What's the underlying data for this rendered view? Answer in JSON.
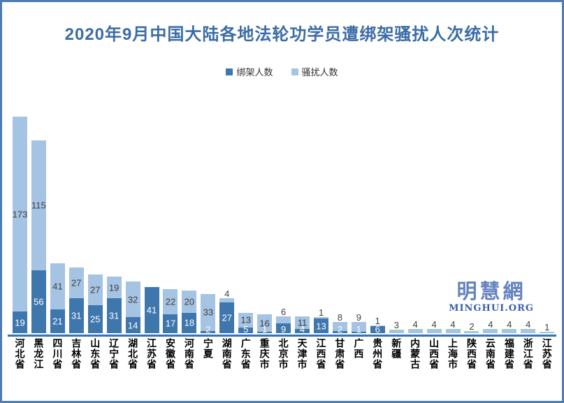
{
  "title": "2020年9月中国大陆各地法轮功学员遭绑架骚扰人次统计",
  "legend": [
    {
      "label": "绑架人数",
      "color": "#3e76ae"
    },
    {
      "label": "骚扰人数",
      "color": "#a5c3e2"
    }
  ],
  "watermark": {
    "cn": "明慧網",
    "en": "MINGHUI.ORG"
  },
  "colors": {
    "title": "#3b6ca6",
    "kidnap_bar": "#3e76ae",
    "harass_bar": "#a5c3e2",
    "axis_line": "#2e74b8",
    "border": "#4e7bb0",
    "label_dark_text": "#3f3f3f",
    "label_white_text": "#ffffff"
  },
  "chart_data": {
    "type": "bar",
    "stacked": true,
    "grid": false,
    "legend_position": "top",
    "title": "2020年9月中国大陆各地法轮功学员遭绑架骚扰人次统计",
    "xlabel": "",
    "ylabel": "",
    "ylim": [
      0,
      192
    ],
    "categories": [
      "河北省",
      "黑龙江",
      "四川省",
      "吉林省",
      "山东省",
      "辽宁省",
      "湖北省",
      "江苏省",
      "安徽省",
      "河南省",
      "宁夏",
      "湖南省",
      "广东省",
      "重庆市",
      "北京市",
      "天津市",
      "江西省",
      "甘肃省",
      "广西",
      "贵州省",
      "新疆",
      "内蒙古",
      "山西省",
      "上海市",
      "陕西省",
      "云南省",
      "福建省",
      "浙江省",
      "江苏省"
    ],
    "series": [
      {
        "name": "绑架人数",
        "color": "#3e76ae",
        "values": [
          19,
          56,
          21,
          31,
          25,
          31,
          14,
          41,
          17,
          18,
          2,
          27,
          5,
          1,
          9,
          4,
          13,
          2,
          1,
          6,
          0,
          0,
          0,
          0,
          0,
          0,
          0,
          0,
          0
        ]
      },
      {
        "name": "骚扰人数",
        "color": "#a5c3e2",
        "values": [
          173,
          115,
          41,
          27,
          27,
          19,
          32,
          0,
          22,
          20,
          33,
          4,
          13,
          16,
          6,
          11,
          1,
          8,
          9,
          1,
          3,
          4,
          4,
          4,
          2,
          4,
          4,
          4,
          1
        ]
      }
    ]
  }
}
